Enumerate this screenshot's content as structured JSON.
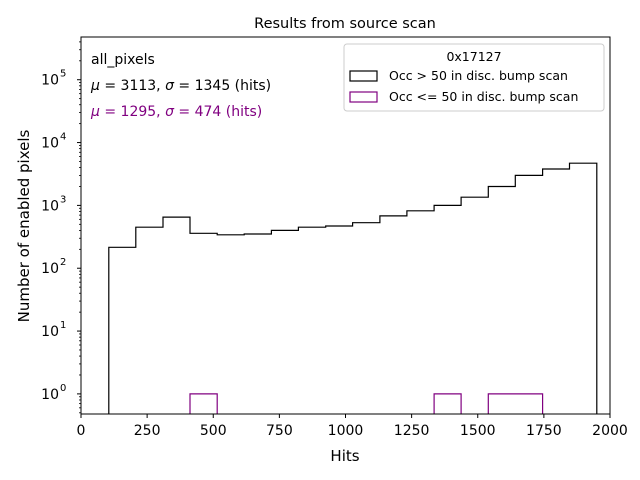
{
  "chart_data": {
    "type": "histogram",
    "title": "Results from source scan",
    "xlabel": "Hits",
    "ylabel": "Number of enabled pixels",
    "xlim": [
      0,
      2000
    ],
    "ylim_log": [
      -0.32,
      5.68
    ],
    "yscale": "log",
    "xticks": [
      0,
      250,
      500,
      750,
      1000,
      1250,
      1500,
      1750,
      2000
    ],
    "yticks": [
      {
        "exp": 0,
        "label": "10",
        "sup": "0"
      },
      {
        "exp": 1,
        "label": "10",
        "sup": "1"
      },
      {
        "exp": 2,
        "label": "10",
        "sup": "2"
      },
      {
        "exp": 3,
        "label": "10",
        "sup": "3"
      },
      {
        "exp": 4,
        "label": "10",
        "sup": "4"
      },
      {
        "exp": 5,
        "label": "10",
        "sup": "5"
      }
    ],
    "annotations": [
      {
        "parts": [
          {
            "t": "all_pixels"
          }
        ],
        "color": "#000000"
      },
      {
        "parts": [
          {
            "t": "μ",
            "i": true
          },
          {
            "t": " = 3113, "
          },
          {
            "t": "σ",
            "i": true
          },
          {
            "t": " = 1345 (hits)"
          }
        ],
        "color": "#000000"
      },
      {
        "parts": [
          {
            "t": "μ",
            "i": true
          },
          {
            "t": " = 1295, "
          },
          {
            "t": "σ",
            "i": true
          },
          {
            "t": " = 474 (hits)"
          }
        ],
        "color": "#800080"
      }
    ],
    "legend": {
      "title": "0x17127",
      "position": "upper right",
      "entries": [
        {
          "label": "Occ > 50 in disc. bump scan",
          "color": "#000000"
        },
        {
          "label": "Occ <= 50 in disc. bump scan",
          "color": "#800080"
        }
      ]
    },
    "series": [
      {
        "name": "Occ > 50 in disc. bump scan",
        "color": "#000000",
        "edges": [
          105,
          207,
          310,
          412,
          515,
          617,
          720,
          822,
          925,
          1027,
          1130,
          1232,
          1335,
          1437,
          1540,
          1642,
          1745,
          1847,
          1950
        ],
        "values": [
          215,
          450,
          650,
          360,
          340,
          350,
          400,
          450,
          470,
          530,
          680,
          820,
          1000,
          1350,
          2000,
          3000,
          3800,
          4700
        ]
      },
      {
        "name": "Occ <= 50 in disc. bump scan",
        "color": "#800080",
        "edges": [
          105,
          207,
          310,
          412,
          515,
          617,
          720,
          822,
          925,
          1027,
          1130,
          1232,
          1335,
          1437,
          1540,
          1642,
          1745,
          1847,
          1950
        ],
        "values": [
          0,
          0,
          0,
          1,
          0,
          0,
          0,
          0,
          0,
          0,
          0,
          0,
          1,
          0,
          1,
          1,
          0,
          0
        ]
      }
    ]
  }
}
